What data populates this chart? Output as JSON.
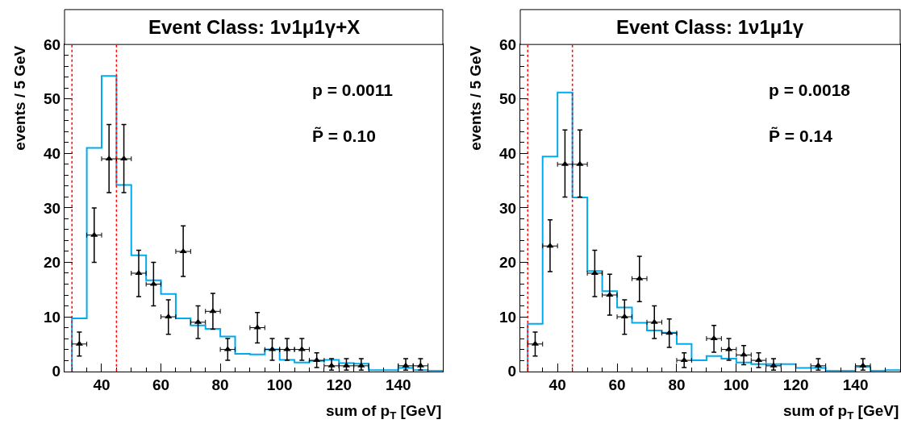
{
  "chart_data": [
    {
      "type": "histogram",
      "title": "Event Class: 1ν1μ1γ+X",
      "xlabel": "sum of p$_{T}$ [GeV]",
      "ylabel": "events / 5 GeV",
      "xlim": [
        27.5,
        155
      ],
      "xticks": [
        40,
        60,
        80,
        100,
        120,
        140
      ],
      "ylim": [
        0,
        60
      ],
      "yticks": [
        0,
        10,
        20,
        30,
        40,
        50,
        60
      ],
      "series": [
        {
          "color": "#00aaee",
          "bins": [
            30,
            35,
            40,
            45,
            50,
            55,
            60,
            65,
            70,
            75,
            80,
            85,
            90,
            95,
            100,
            105,
            110,
            115,
            120,
            125,
            130,
            135,
            140,
            145,
            150,
            155
          ],
          "values": [
            9.7,
            41,
            54.2,
            34.2,
            21.3,
            16.7,
            14.2,
            9.7,
            8.4,
            7.8,
            6.4,
            3.2,
            3.1,
            4.0,
            2.1,
            1.6,
            1.9,
            2.1,
            1.5,
            1.4,
            0.2,
            0.2,
            0.6,
            0.2,
            0.1
          ]
        },
        {
          "type": "scatter",
          "color": "#000000",
          "marker": "triangle",
          "x": [
            32.5,
            37.5,
            42.5,
            47.5,
            52.5,
            57.5,
            62.5,
            67.5,
            72.5,
            77.5,
            82.5,
            92.5,
            97.5,
            102.5,
            107.5,
            112.5,
            117.5,
            122.5,
            127.5,
            142.5,
            147.5
          ],
          "values": [
            5,
            25,
            39,
            39,
            18,
            16,
            10,
            22,
            9,
            11,
            4,
            8,
            4,
            4,
            4,
            2,
            1,
            1,
            1,
            1,
            1
          ],
          "errors": [
            [
              2.8,
              7.2
            ],
            [
              20.0,
              30.0
            ],
            [
              32.8,
              45.3
            ],
            [
              32.8,
              45.3
            ],
            [
              13.7,
              22.2
            ],
            [
              12.0,
              20.0
            ],
            [
              6.8,
              13.1
            ],
            [
              17.4,
              26.7
            ],
            [
              6.0,
              12.0
            ],
            [
              7.7,
              14.3
            ],
            [
              2.0,
              6.0
            ],
            [
              5.2,
              10.8
            ],
            [
              2.0,
              6.0
            ],
            [
              2.0,
              6.0
            ],
            [
              2.0,
              6.0
            ],
            [
              0.7,
              3.4
            ],
            [
              0.2,
              2.3
            ],
            [
              0.2,
              2.3
            ],
            [
              0.2,
              2.3
            ],
            [
              0.2,
              2.3
            ],
            [
              0.2,
              2.3
            ]
          ],
          "xerrors": [
            2.5,
            2.5,
            2.5,
            2.5,
            2.5,
            2.5,
            2.5,
            2.5,
            2.5,
            2.5,
            2.5,
            2.5,
            2.5,
            2.5,
            2.5,
            2.5,
            2.5,
            2.5,
            2.5,
            2.5,
            2.5
          ]
        }
      ],
      "ref_lines": [
        {
          "axis": "x",
          "value": 30,
          "color": "#ff0000",
          "line_style": "dotted"
        },
        {
          "axis": "x",
          "value": 45,
          "color": "#ff0000",
          "line_style": "dotted"
        }
      ],
      "annotations": [
        "p = 0.0011",
        "P̃ = 0.10"
      ]
    },
    {
      "type": "histogram",
      "title": "Event Class: 1ν1μ1γ",
      "xlabel": "sum of p$_{T}$ [GeV]",
      "ylabel": "events / 5 GeV",
      "xlim": [
        27.5,
        155
      ],
      "xticks": [
        40,
        60,
        80,
        100,
        120,
        140
      ],
      "ylim": [
        0,
        60
      ],
      "yticks": [
        0,
        10,
        20,
        30,
        40,
        50,
        60
      ],
      "series": [
        {
          "color": "#00aaee",
          "bins": [
            30,
            35,
            40,
            45,
            50,
            55,
            60,
            65,
            70,
            75,
            80,
            85,
            90,
            95,
            100,
            105,
            110,
            115,
            120,
            125,
            130,
            135,
            140,
            145,
            150,
            155
          ],
          "values": [
            8.7,
            39.4,
            51.2,
            31.9,
            18.4,
            14.7,
            11.7,
            8.9,
            7.5,
            7.1,
            5.0,
            2.0,
            2.8,
            2.3,
            1.6,
            1.3,
            1.3,
            1.3,
            0.6,
            0.6,
            0.1,
            0.1,
            0.8,
            0.1,
            0.2
          ]
        },
        {
          "type": "scatter",
          "color": "#000000",
          "marker": "triangle",
          "x": [
            32.5,
            37.5,
            42.5,
            47.5,
            52.5,
            57.5,
            62.5,
            67.5,
            72.5,
            77.5,
            82.5,
            92.5,
            97.5,
            102.5,
            107.5,
            112.5,
            127.5,
            142.5
          ],
          "values": [
            5,
            23,
            38,
            38,
            18,
            14,
            10,
            17,
            9,
            7,
            2,
            6,
            4,
            3,
            2,
            1,
            1,
            1
          ],
          "errors": [
            [
              2.8,
              7.2
            ],
            [
              18.3,
              27.8
            ],
            [
              32.0,
              44.3
            ],
            [
              32.0,
              44.3
            ],
            [
              13.7,
              22.2
            ],
            [
              10.3,
              17.8
            ],
            [
              6.8,
              13.1
            ],
            [
              12.8,
              21.1
            ],
            [
              6.0,
              12.0
            ],
            [
              4.4,
              9.6
            ],
            [
              0.7,
              3.4
            ],
            [
              3.5,
              8.4
            ],
            [
              2.0,
              6.0
            ],
            [
              1.2,
              4.7
            ],
            [
              0.7,
              3.4
            ],
            [
              0.2,
              2.3
            ],
            [
              0.2,
              2.3
            ],
            [
              0.2,
              2.3
            ]
          ],
          "xerrors": [
            2.5,
            2.5,
            2.5,
            2.5,
            2.5,
            2.5,
            2.5,
            2.5,
            2.5,
            2.5,
            2.5,
            2.5,
            2.5,
            2.5,
            2.5,
            2.5,
            2.5,
            2.5
          ]
        }
      ],
      "ref_lines": [
        {
          "axis": "x",
          "value": 30,
          "color": "#ff0000",
          "line_style": "dotted"
        },
        {
          "axis": "x",
          "value": 45,
          "color": "#ff0000",
          "line_style": "dotted"
        }
      ],
      "annotations": [
        "p = 0.0018",
        "P̃ = 0.14"
      ]
    }
  ]
}
